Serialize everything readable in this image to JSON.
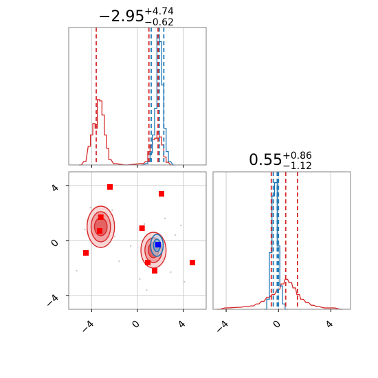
{
  "chart_data": {
    "type": "corner",
    "colors": {
      "red": "#d62728",
      "blue": "#1f77b4",
      "fill_red": "#f4a6a6",
      "grid": "#cccccc",
      "frame": "#808080",
      "marker_red": "#ff0000",
      "marker_blue": "#0000ff"
    },
    "param1": {
      "title": {
        "median": "−2.95",
        "plus": "+4.74",
        "minus": "−0.62"
      },
      "range": [
        -6,
        6
      ],
      "ticks": [
        -4,
        0,
        4
      ],
      "tick_labels": [
        "−4",
        "0",
        "4"
      ],
      "blue_quantiles": [
        1.2,
        1.9,
        2.3
      ],
      "red_quantiles": [
        -3.6,
        1.8,
        1.0
      ],
      "red_hist": [
        {
          "x": -5.0,
          "h": 0.0
        },
        {
          "x": -4.6,
          "h": 0.05
        },
        {
          "x": -4.2,
          "h": 0.28
        },
        {
          "x": -4.0,
          "h": 0.45
        },
        {
          "x": -3.8,
          "h": 0.62
        },
        {
          "x": -3.6,
          "h": 0.55
        },
        {
          "x": -3.4,
          "h": 0.98
        },
        {
          "x": -3.2,
          "h": 0.96
        },
        {
          "x": -3.0,
          "h": 0.75
        },
        {
          "x": -2.8,
          "h": 0.45
        },
        {
          "x": -2.6,
          "h": 0.25
        },
        {
          "x": -2.4,
          "h": 0.08
        },
        {
          "x": -2.0,
          "h": 0.02
        },
        {
          "x": -1.0,
          "h": 0.0
        },
        {
          "x": 0.4,
          "h": 0.02
        },
        {
          "x": 0.8,
          "h": 0.05
        },
        {
          "x": 1.0,
          "h": 0.2
        },
        {
          "x": 1.2,
          "h": 0.3
        },
        {
          "x": 1.4,
          "h": 0.38
        },
        {
          "x": 1.6,
          "h": 0.4
        },
        {
          "x": 1.8,
          "h": 0.5
        },
        {
          "x": 2.0,
          "h": 0.42
        },
        {
          "x": 2.2,
          "h": 0.3
        },
        {
          "x": 2.4,
          "h": 0.12
        },
        {
          "x": 2.6,
          "h": 0.04
        },
        {
          "x": 3.0,
          "h": 0.0
        }
      ],
      "blue_hist": [
        {
          "x": 0.4,
          "h": 0.0
        },
        {
          "x": 0.8,
          "h": 0.02
        },
        {
          "x": 1.0,
          "h": 0.05
        },
        {
          "x": 1.2,
          "h": 0.18
        },
        {
          "x": 1.4,
          "h": 0.45
        },
        {
          "x": 1.6,
          "h": 0.85
        },
        {
          "x": 1.8,
          "h": 1.95
        },
        {
          "x": 2.0,
          "h": 1.85
        },
        {
          "x": 2.2,
          "h": 1.2
        },
        {
          "x": 2.4,
          "h": 0.55
        },
        {
          "x": 2.6,
          "h": 0.2
        },
        {
          "x": 2.8,
          "h": 0.05
        },
        {
          "x": 3.2,
          "h": 0.0
        }
      ]
    },
    "param2": {
      "title": {
        "median": "0.55",
        "plus": "+0.86",
        "minus": "−1.12"
      },
      "range": [
        -5,
        5.5
      ],
      "ticks": [
        -4,
        0,
        4
      ],
      "tick_labels": [
        "−4",
        "0",
        "4"
      ],
      "blue_quantiles": [
        -0.4,
        -0.1,
        0.0
      ],
      "red_quantiles": [
        -0.55,
        1.45,
        0.55
      ],
      "red_hist": [
        {
          "x": -4.6,
          "h": 0.0
        },
        {
          "x": -4.0,
          "h": 0.02
        },
        {
          "x": -3.0,
          "h": 0.03
        },
        {
          "x": -2.5,
          "h": 0.04
        },
        {
          "x": -2.0,
          "h": 0.05
        },
        {
          "x": -1.6,
          "h": 0.08
        },
        {
          "x": -1.2,
          "h": 0.12
        },
        {
          "x": -0.8,
          "h": 0.18
        },
        {
          "x": -0.4,
          "h": 0.22
        },
        {
          "x": 0.0,
          "h": 0.3
        },
        {
          "x": 0.3,
          "h": 0.38
        },
        {
          "x": 0.6,
          "h": 0.45
        },
        {
          "x": 0.9,
          "h": 0.4
        },
        {
          "x": 1.2,
          "h": 0.32
        },
        {
          "x": 1.5,
          "h": 0.22
        },
        {
          "x": 1.8,
          "h": 0.15
        },
        {
          "x": 2.2,
          "h": 0.1
        },
        {
          "x": 2.6,
          "h": 0.06
        },
        {
          "x": 3.0,
          "h": 0.04
        },
        {
          "x": 3.6,
          "h": 0.02
        },
        {
          "x": 4.2,
          "h": 0.02
        },
        {
          "x": 4.8,
          "h": 0.0
        }
      ],
      "blue_hist": [
        {
          "x": -1.0,
          "h": 0.0
        },
        {
          "x": -0.8,
          "h": 0.15
        },
        {
          "x": -0.6,
          "h": 0.85
        },
        {
          "x": -0.4,
          "h": 1.7
        },
        {
          "x": -0.2,
          "h": 1.9
        },
        {
          "x": 0.0,
          "h": 0.95
        },
        {
          "x": 0.2,
          "h": 0.35
        },
        {
          "x": 0.4,
          "h": 0.08
        },
        {
          "x": 0.6,
          "h": 0.0
        }
      ]
    },
    "joint": {
      "red_regions": [
        {
          "cx": -3.2,
          "cy": 1.0,
          "rx": [
            1.2,
            0.85,
            0.55
          ],
          "ry": [
            3.0,
            2.2,
            1.3
          ]
        },
        {
          "cx": 1.4,
          "cy": -0.7,
          "rx": [
            1.1,
            0.75,
            0.45
          ],
          "ry": [
            2.6,
            1.8,
            1.1
          ]
        }
      ],
      "blue_regions": [
        {
          "cx": 1.7,
          "cy": -0.35,
          "rx": [
            0.55,
            0.3
          ],
          "ry": [
            0.8,
            0.45
          ]
        }
      ],
      "red_markers": [
        {
          "x": -2.4,
          "y": 3.9
        },
        {
          "x": 2.1,
          "y": 3.4
        },
        {
          "x": -3.2,
          "y": 1.7
        },
        {
          "x": -3.3,
          "y": 0.7
        },
        {
          "x": 0.4,
          "y": 0.9
        },
        {
          "x": -4.5,
          "y": -0.9
        },
        {
          "x": 0.9,
          "y": -1.6
        },
        {
          "x": 1.5,
          "y": -2.2
        },
        {
          "x": 4.8,
          "y": -1.6
        }
      ],
      "blue_markers": [
        {
          "x": 1.8,
          "y": -0.3
        }
      ],
      "scatter": [
        {
          "x": -4.1,
          "y": 2.4
        },
        {
          "x": -3.9,
          "y": -0.2
        },
        {
          "x": -2.2,
          "y": 2.2
        },
        {
          "x": -2.0,
          "y": 0.3
        },
        {
          "x": -4.6,
          "y": 0.8
        },
        {
          "x": -1.6,
          "y": -1.5
        },
        {
          "x": 0.2,
          "y": -2.8
        },
        {
          "x": 0.6,
          "y": 1.2
        },
        {
          "x": 2.9,
          "y": -2.3
        },
        {
          "x": 3.3,
          "y": 0.4
        },
        {
          "x": 2.4,
          "y": 1.6
        },
        {
          "x": 0.8,
          "y": -3.6
        },
        {
          "x": -5.3,
          "y": -2.2
        },
        {
          "x": 4.1,
          "y": -3.0
        },
        {
          "x": 3.8,
          "y": 1.1
        },
        {
          "x": -0.6,
          "y": -0.4
        }
      ]
    }
  }
}
